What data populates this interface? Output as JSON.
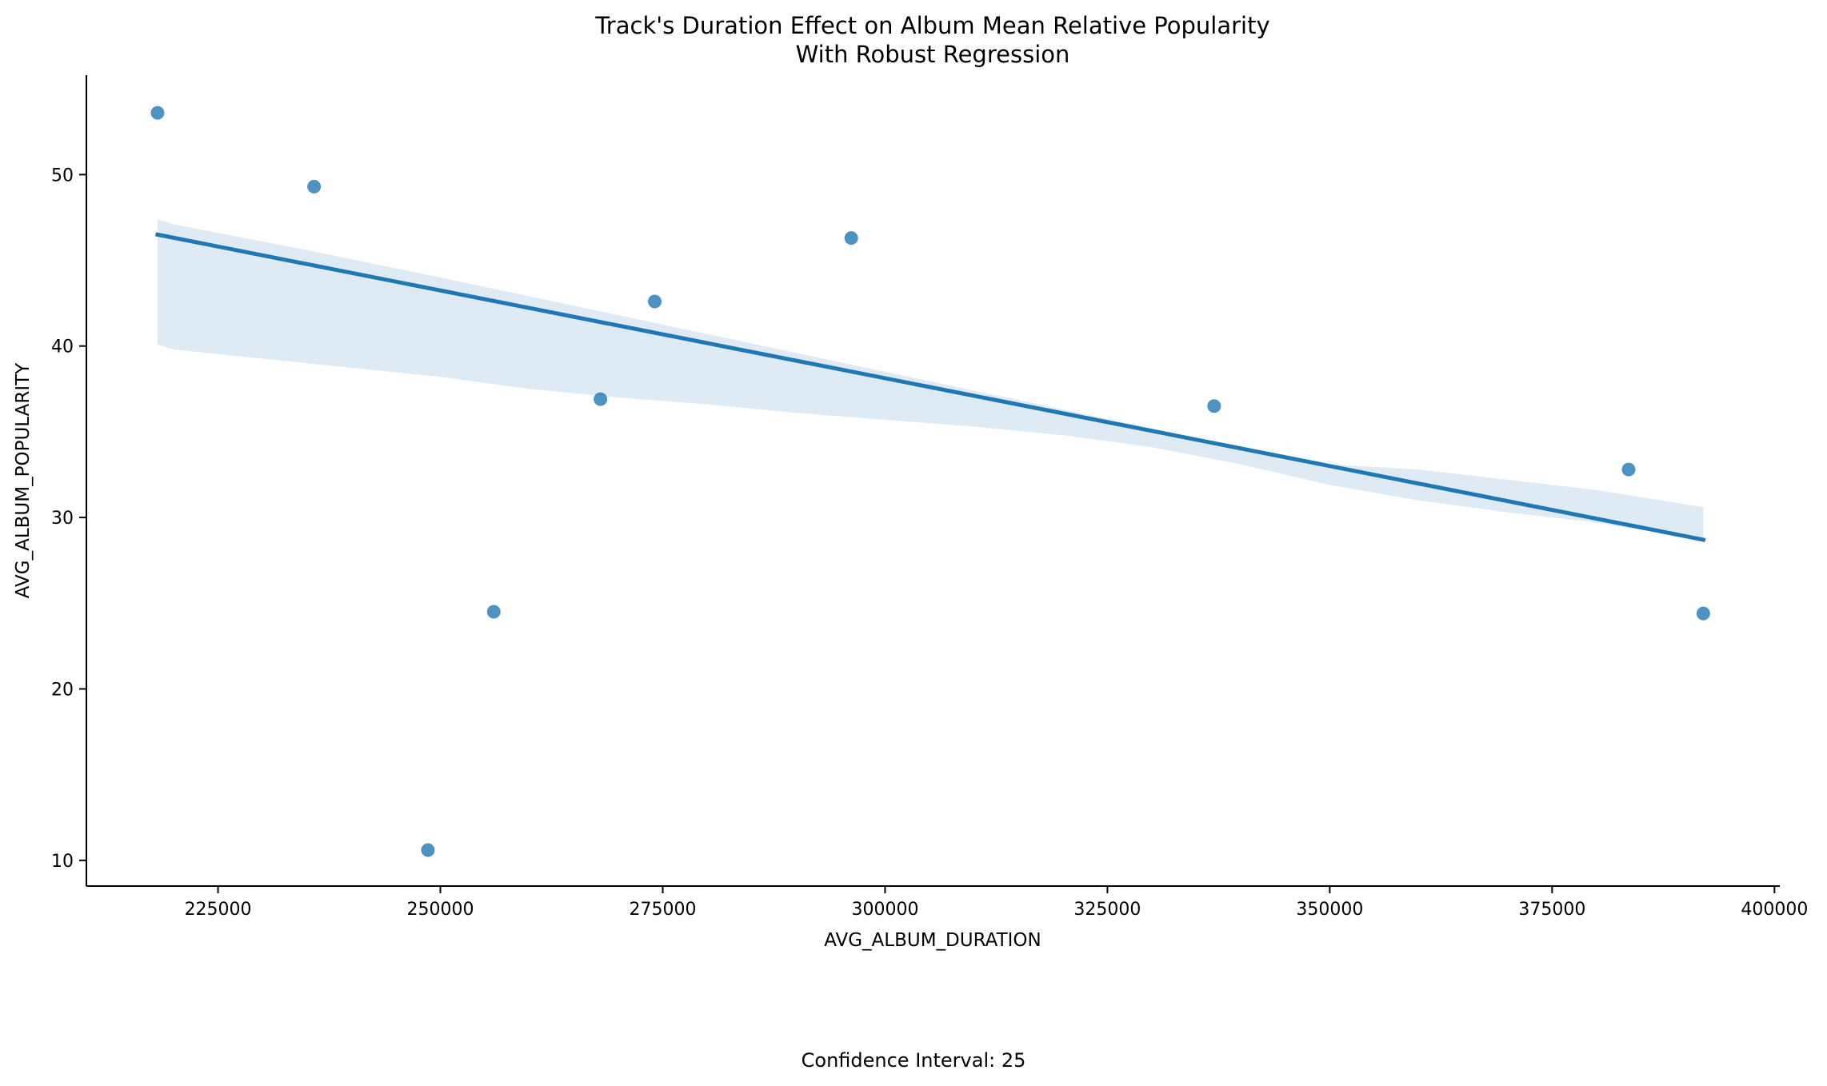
{
  "chart_data": {
    "type": "scatter",
    "title": "Track's Duration Effect on Album Mean Relative Popularity",
    "subtitle": "With Robust Regression",
    "xlabel": "AVG_ALBUM_DURATION",
    "ylabel": "AVG_ALBUM_POPULARITY",
    "xlim": [
      210200,
      400600
    ],
    "ylim": [
      8.5,
      55.8
    ],
    "xticks": [
      225000,
      250000,
      275000,
      300000,
      325000,
      350000,
      375000,
      400000
    ],
    "xtick_labels": [
      "225000",
      "250000",
      "275000",
      "300000",
      "325000",
      "350000",
      "375000",
      "400000"
    ],
    "yticks": [
      10,
      20,
      30,
      40,
      50
    ],
    "ytick_labels": [
      "10",
      "20",
      "30",
      "40",
      "50"
    ],
    "grid": false,
    "point_color": "#1f77b4",
    "points": [
      {
        "x": 218200,
        "y": 53.6
      },
      {
        "x": 235800,
        "y": 49.3
      },
      {
        "x": 248600,
        "y": 10.6
      },
      {
        "x": 256000,
        "y": 24.5
      },
      {
        "x": 268000,
        "y": 36.9
      },
      {
        "x": 274100,
        "y": 42.6
      },
      {
        "x": 296200,
        "y": 46.3
      },
      {
        "x": 337000,
        "y": 36.5
      },
      {
        "x": 383600,
        "y": 32.8
      },
      {
        "x": 392000,
        "y": 24.4
      }
    ],
    "regression": {
      "x": [
        218200,
        392000
      ],
      "y": [
        46.5,
        28.7
      ],
      "color": "#1f77b4"
    },
    "confidence_band": {
      "color": "#1f77b4",
      "x": [
        218200,
        220000,
        235000,
        250000,
        260000,
        270000,
        280000,
        290000,
        300000,
        310000,
        320000,
        330000,
        340000,
        350000,
        360000,
        370000,
        380000,
        392000
      ],
      "upper": [
        47.4,
        47.1,
        45.6,
        44.0,
        42.9,
        41.8,
        40.7,
        39.6,
        38.5,
        37.4,
        36.3,
        35.2,
        34.0,
        33.1,
        32.8,
        32.2,
        31.6,
        30.6
      ],
      "lower": [
        40.1,
        39.8,
        39.0,
        38.2,
        37.5,
        37.0,
        36.6,
        36.1,
        35.7,
        35.3,
        34.8,
        34.1,
        33.1,
        31.9,
        31.0,
        30.3,
        29.7,
        28.7
      ]
    },
    "footnote": "Confidence Interval: 25"
  }
}
